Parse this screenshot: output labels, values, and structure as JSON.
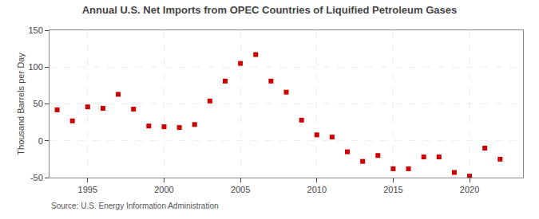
{
  "chart_data": {
    "type": "scatter",
    "title": "Annual U.S. Net Imports from OPEC Countries of Liquified Petroleum Gases",
    "ylabel": "Thousand Barrels per Day",
    "annotations": [
      "Source: U.S. Energy Information Administration"
    ],
    "x": [
      1993,
      1994,
      1995,
      1996,
      1997,
      1998,
      1999,
      2000,
      2001,
      2002,
      2003,
      2004,
      2005,
      2006,
      2007,
      2008,
      2009,
      2010,
      2011,
      2012,
      2013,
      2014,
      2015,
      2016,
      2017,
      2018,
      2019,
      2020,
      2021,
      2022
    ],
    "values": [
      42,
      27,
      46,
      44,
      63,
      43,
      20,
      19,
      18,
      22,
      54,
      81,
      105,
      117,
      81,
      66,
      28,
      8,
      5,
      -15,
      -28,
      -20,
      -38,
      -38,
      -22,
      -22,
      -43,
      -48,
      -10,
      -25
    ],
    "color": "#cc0000",
    "marker": "square",
    "xlim": [
      1992.5,
      2023.5
    ],
    "xticks": [
      1995,
      2000,
      2005,
      2010,
      2015,
      2020
    ],
    "ylim": [
      -50,
      150
    ],
    "yticks": [
      -50,
      0,
      50,
      100,
      150
    ],
    "grid": true
  }
}
